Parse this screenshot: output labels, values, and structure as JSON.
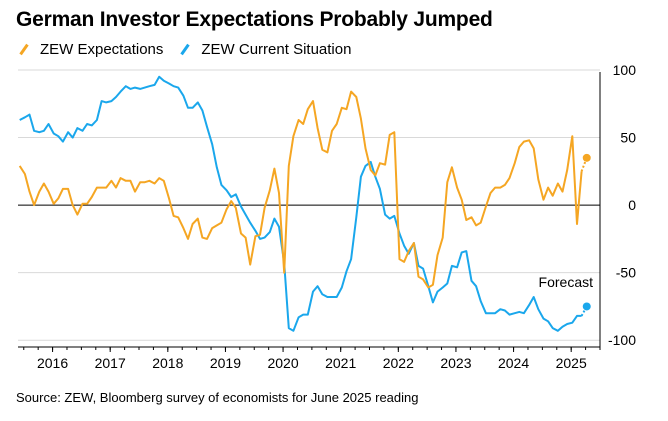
{
  "title": "German Investor Expectations Probably Jumped",
  "source": "Source: ZEW, Bloomberg survey of economists for June 2025 reading",
  "colors": {
    "expectations": "#f5a623",
    "current": "#1aa7ec",
    "axis": "#000000",
    "grid": "#d9d9d9"
  },
  "chart_data": {
    "type": "line",
    "title": "German Investor Expectations Probably Jumped",
    "xlabel": "",
    "ylabel": "",
    "ylim": [
      -105,
      100
    ],
    "yticks": [
      100,
      50,
      0,
      -50,
      -100
    ],
    "xlim": [
      2015.55,
      2025.65
    ],
    "xticks": [
      {
        "label": "2016",
        "value": 2016.15
      },
      {
        "label": "2017",
        "value": 2017.15
      },
      {
        "label": "2018",
        "value": 2018.15
      },
      {
        "label": "2019",
        "value": 2019.15
      },
      {
        "label": "2020",
        "value": 2020.15
      },
      {
        "label": "2021",
        "value": 2021.15
      },
      {
        "label": "2022",
        "value": 2022.15
      },
      {
        "label": "2023",
        "value": 2023.15
      },
      {
        "label": "2024",
        "value": 2024.15
      },
      {
        "label": "2025",
        "value": 2025.15
      }
    ],
    "legend_position": "top-left",
    "annotation": {
      "text": "Forecast",
      "x": 2025.42
    },
    "series": [
      {
        "name": "ZEW Expectations",
        "color": "#f5a623",
        "points": [
          [
            2015.58,
            29
          ],
          [
            2015.67,
            23
          ],
          [
            2015.75,
            10
          ],
          [
            2015.83,
            0
          ],
          [
            2015.92,
            10
          ],
          [
            2016.0,
            16
          ],
          [
            2016.08,
            10
          ],
          [
            2016.17,
            1
          ],
          [
            2016.25,
            5
          ],
          [
            2016.33,
            12
          ],
          [
            2016.42,
            12
          ],
          [
            2016.5,
            0
          ],
          [
            2016.58,
            -7
          ],
          [
            2016.67,
            1
          ],
          [
            2016.75,
            1
          ],
          [
            2016.83,
            6
          ],
          [
            2016.92,
            13
          ],
          [
            2017.0,
            13
          ],
          [
            2017.08,
            13
          ],
          [
            2017.17,
            18
          ],
          [
            2017.25,
            13
          ],
          [
            2017.33,
            20
          ],
          [
            2017.42,
            18
          ],
          [
            2017.5,
            18
          ],
          [
            2017.58,
            10
          ],
          [
            2017.67,
            17
          ],
          [
            2017.75,
            17
          ],
          [
            2017.83,
            18
          ],
          [
            2017.92,
            16
          ],
          [
            2018.0,
            20
          ],
          [
            2018.08,
            18
          ],
          [
            2018.17,
            5
          ],
          [
            2018.25,
            -8
          ],
          [
            2018.33,
            -9
          ],
          [
            2018.42,
            -17
          ],
          [
            2018.5,
            -25
          ],
          [
            2018.58,
            -14
          ],
          [
            2018.67,
            -10
          ],
          [
            2018.75,
            -24
          ],
          [
            2018.83,
            -25
          ],
          [
            2018.92,
            -17
          ],
          [
            2019.0,
            -15
          ],
          [
            2019.08,
            -13
          ],
          [
            2019.17,
            -3
          ],
          [
            2019.25,
            3
          ],
          [
            2019.33,
            -2
          ],
          [
            2019.42,
            -21
          ],
          [
            2019.5,
            -24
          ],
          [
            2019.58,
            -44
          ],
          [
            2019.67,
            -23
          ],
          [
            2019.75,
            -22
          ],
          [
            2019.83,
            -2
          ],
          [
            2019.92,
            11
          ],
          [
            2020.0,
            27
          ],
          [
            2020.08,
            9
          ],
          [
            2020.17,
            -50
          ],
          [
            2020.25,
            29
          ],
          [
            2020.33,
            51
          ],
          [
            2020.42,
            63
          ],
          [
            2020.5,
            60
          ],
          [
            2020.58,
            71
          ],
          [
            2020.67,
            77
          ],
          [
            2020.75,
            57
          ],
          [
            2020.83,
            41
          ],
          [
            2020.92,
            39
          ],
          [
            2021.0,
            55
          ],
          [
            2021.08,
            60
          ],
          [
            2021.17,
            72
          ],
          [
            2021.25,
            71
          ],
          [
            2021.33,
            84
          ],
          [
            2021.42,
            80
          ],
          [
            2021.5,
            64
          ],
          [
            2021.58,
            42
          ],
          [
            2021.67,
            26
          ],
          [
            2021.75,
            22
          ],
          [
            2021.83,
            31
          ],
          [
            2021.92,
            30
          ],
          [
            2022.0,
            52
          ],
          [
            2022.08,
            54
          ],
          [
            2022.17,
            -40
          ],
          [
            2022.25,
            -42
          ],
          [
            2022.33,
            -34
          ],
          [
            2022.42,
            -28
          ],
          [
            2022.5,
            -53
          ],
          [
            2022.58,
            -55
          ],
          [
            2022.67,
            -61
          ],
          [
            2022.75,
            -59
          ],
          [
            2022.83,
            -37
          ],
          [
            2022.92,
            -24
          ],
          [
            2023.0,
            17
          ],
          [
            2023.08,
            28
          ],
          [
            2023.17,
            13
          ],
          [
            2023.25,
            4
          ],
          [
            2023.33,
            -11
          ],
          [
            2023.42,
            -9
          ],
          [
            2023.5,
            -15
          ],
          [
            2023.58,
            -13
          ],
          [
            2023.67,
            -1
          ],
          [
            2023.75,
            9
          ],
          [
            2023.83,
            13
          ],
          [
            2023.92,
            13
          ],
          [
            2024.0,
            15
          ],
          [
            2024.08,
            20
          ],
          [
            2024.17,
            31
          ],
          [
            2024.25,
            43
          ],
          [
            2024.33,
            47
          ],
          [
            2024.42,
            48
          ],
          [
            2024.5,
            42
          ],
          [
            2024.58,
            19
          ],
          [
            2024.67,
            4
          ],
          [
            2024.75,
            13
          ],
          [
            2024.83,
            7
          ],
          [
            2024.92,
            16
          ],
          [
            2025.0,
            10
          ],
          [
            2025.08,
            26
          ],
          [
            2025.17,
            51
          ],
          [
            2025.25,
            -14
          ],
          [
            2025.33,
            25
          ],
          [
            2025.42,
            35
          ]
        ]
      },
      {
        "name": "ZEW Current Situation",
        "color": "#1aa7ec",
        "points": [
          [
            2015.58,
            63
          ],
          [
            2015.67,
            65
          ],
          [
            2015.75,
            67
          ],
          [
            2015.83,
            55
          ],
          [
            2015.92,
            54
          ],
          [
            2016.0,
            55
          ],
          [
            2016.08,
            60
          ],
          [
            2016.17,
            53
          ],
          [
            2016.25,
            51
          ],
          [
            2016.33,
            47
          ],
          [
            2016.42,
            54
          ],
          [
            2016.5,
            50
          ],
          [
            2016.58,
            57
          ],
          [
            2016.67,
            55
          ],
          [
            2016.75,
            60
          ],
          [
            2016.83,
            59
          ],
          [
            2016.92,
            63
          ],
          [
            2017.0,
            77
          ],
          [
            2017.08,
            76
          ],
          [
            2017.17,
            77
          ],
          [
            2017.25,
            80
          ],
          [
            2017.33,
            84
          ],
          [
            2017.42,
            88
          ],
          [
            2017.5,
            86
          ],
          [
            2017.58,
            87
          ],
          [
            2017.67,
            86
          ],
          [
            2017.75,
            87
          ],
          [
            2017.83,
            88
          ],
          [
            2017.92,
            89
          ],
          [
            2018.0,
            95
          ],
          [
            2018.08,
            92
          ],
          [
            2018.17,
            90
          ],
          [
            2018.25,
            88
          ],
          [
            2018.33,
            87
          ],
          [
            2018.42,
            81
          ],
          [
            2018.5,
            72
          ],
          [
            2018.58,
            72
          ],
          [
            2018.67,
            76
          ],
          [
            2018.75,
            70
          ],
          [
            2018.83,
            58
          ],
          [
            2018.92,
            45
          ],
          [
            2019.0,
            28
          ],
          [
            2019.08,
            15
          ],
          [
            2019.17,
            11
          ],
          [
            2019.25,
            6
          ],
          [
            2019.33,
            8
          ],
          [
            2019.42,
            -1
          ],
          [
            2019.5,
            -7
          ],
          [
            2019.58,
            -13
          ],
          [
            2019.67,
            -19
          ],
          [
            2019.75,
            -25
          ],
          [
            2019.83,
            -24
          ],
          [
            2019.92,
            -20
          ],
          [
            2020.0,
            -10
          ],
          [
            2020.08,
            -16
          ],
          [
            2020.17,
            -43
          ],
          [
            2020.25,
            -91
          ],
          [
            2020.33,
            -93
          ],
          [
            2020.42,
            -83
          ],
          [
            2020.5,
            -81
          ],
          [
            2020.58,
            -81
          ],
          [
            2020.67,
            -64
          ],
          [
            2020.75,
            -60
          ],
          [
            2020.83,
            -66
          ],
          [
            2020.92,
            -68
          ],
          [
            2021.0,
            -68
          ],
          [
            2021.08,
            -68
          ],
          [
            2021.17,
            -61
          ],
          [
            2021.25,
            -49
          ],
          [
            2021.33,
            -40
          ],
          [
            2021.42,
            -9
          ],
          [
            2021.5,
            21
          ],
          [
            2021.58,
            29
          ],
          [
            2021.67,
            32
          ],
          [
            2021.75,
            21
          ],
          [
            2021.83,
            12
          ],
          [
            2021.92,
            -7
          ],
          [
            2022.0,
            -10
          ],
          [
            2022.08,
            -8
          ],
          [
            2022.17,
            -21
          ],
          [
            2022.25,
            -30
          ],
          [
            2022.33,
            -36
          ],
          [
            2022.42,
            -28
          ],
          [
            2022.5,
            -45
          ],
          [
            2022.58,
            -47
          ],
          [
            2022.67,
            -60
          ],
          [
            2022.75,
            -72
          ],
          [
            2022.83,
            -64
          ],
          [
            2022.92,
            -61
          ],
          [
            2023.0,
            -58
          ],
          [
            2023.08,
            -45
          ],
          [
            2023.17,
            -46
          ],
          [
            2023.25,
            -35
          ],
          [
            2023.33,
            -34
          ],
          [
            2023.42,
            -56
          ],
          [
            2023.5,
            -60
          ],
          [
            2023.58,
            -71
          ],
          [
            2023.67,
            -80
          ],
          [
            2023.75,
            -80
          ],
          [
            2023.83,
            -80
          ],
          [
            2023.92,
            -77
          ],
          [
            2024.0,
            -78
          ],
          [
            2024.08,
            -81
          ],
          [
            2024.17,
            -80
          ],
          [
            2024.25,
            -79
          ],
          [
            2024.33,
            -80
          ],
          [
            2024.42,
            -74
          ],
          [
            2024.5,
            -68
          ],
          [
            2024.58,
            -77
          ],
          [
            2024.67,
            -84
          ],
          [
            2024.75,
            -86
          ],
          [
            2024.83,
            -91
          ],
          [
            2024.92,
            -93
          ],
          [
            2025.0,
            -90
          ],
          [
            2025.08,
            -88
          ],
          [
            2025.17,
            -87
          ],
          [
            2025.25,
            -82
          ],
          [
            2025.33,
            -82
          ],
          [
            2025.42,
            -75
          ]
        ]
      }
    ]
  }
}
